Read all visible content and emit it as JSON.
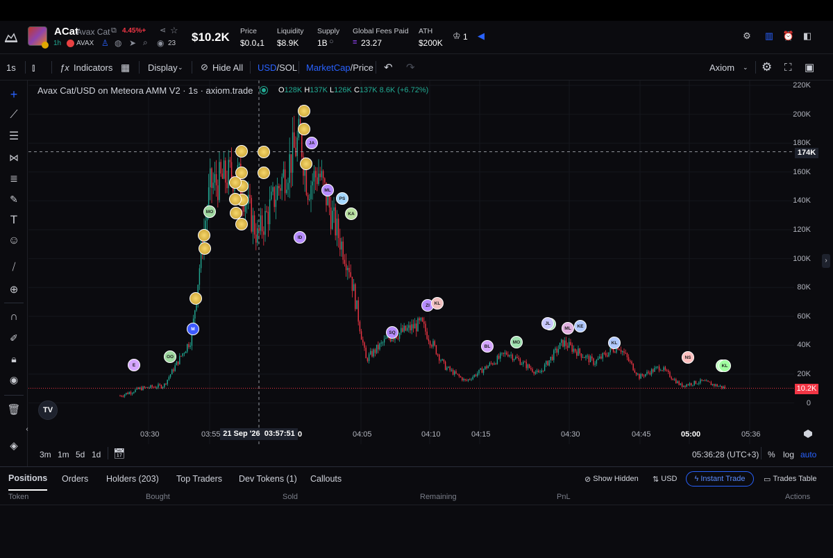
{
  "header": {
    "ticker": "ACat",
    "name": "Avax Cat",
    "change": "4.45%+",
    "age": "1h",
    "chain": "AVAX",
    "views": "23",
    "market_cap": "$10.2K",
    "stats": [
      {
        "label": "Price",
        "value": "$0.0₄1"
      },
      {
        "label": "Liquidity",
        "value": "$8.9K"
      },
      {
        "label": "Supply",
        "value": "1B"
      },
      {
        "label": "Global Fees Paid",
        "value": "23.27"
      },
      {
        "label": "ATH",
        "value": "$200K"
      }
    ],
    "holders_count": "1"
  },
  "toolbar": {
    "interval": "1s",
    "indicators": "Indicators",
    "display": "Display",
    "hide_all": "Hide All",
    "usd": "USD",
    "sol": "/SOL",
    "marketcap": "MarketCap",
    "price": "/Price",
    "provider": "Axiom"
  },
  "chart": {
    "title": "Avax Cat/USD on Meteora AMM V2 · 1s · axiom.trade",
    "ohlc": {
      "o_label": "O",
      "o": "128K",
      "h_label": "H",
      "h": "137K",
      "l_label": "L",
      "l": "126K",
      "c_label": "C",
      "c": "137K",
      "change": "8.6K (+6.72%)"
    },
    "price_labels": [
      "220K",
      "200K",
      "180K",
      "160K",
      "140K",
      "120K",
      "100K",
      "80K",
      "60K",
      "40K",
      "20K",
      "0"
    ],
    "crosshair_price": "174K",
    "current_price": "10.2K",
    "time_labels": [
      "03:30",
      "03:55",
      "04:05",
      "04:10",
      "04:15",
      "04:30",
      "04:45",
      "05:00",
      "05:36"
    ],
    "crosshair_date": "21 Sep '26",
    "crosshair_time": "03:57:51",
    "crosshair_zero": "0",
    "logo": "TV",
    "colors": {
      "up": "#22ab94",
      "down": "#f23645",
      "accent": "#2962ff"
    },
    "bubbles": [
      "M",
      "MO",
      "OO",
      "E",
      "ID",
      "ML",
      "PS",
      "KA",
      "JA",
      "SQ",
      "ZI",
      "KL",
      "BL",
      "MO",
      "FU",
      "JL",
      "ML",
      "KE",
      "KL",
      "KE",
      "NS",
      "KL"
    ]
  },
  "chart_data": {
    "type": "line",
    "title": "Avax Cat/USD on Meteora AMM V2 · 1s · axiom.trade",
    "xlabel": "",
    "ylabel": "",
    "ylim": [
      0,
      220000
    ],
    "x": [
      "03:25",
      "03:30",
      "03:40",
      "03:50",
      "03:52",
      "03:55",
      "03:57",
      "03:59",
      "04:00",
      "04:01",
      "04:02",
      "04:03",
      "04:04",
      "04:05",
      "04:07",
      "04:10",
      "04:12",
      "04:15",
      "04:20",
      "04:25",
      "04:30",
      "04:35",
      "04:40",
      "04:45",
      "04:50",
      "04:55",
      "05:00",
      "05:05"
    ],
    "series": [
      {
        "values": [
          5000,
          10000,
          12000,
          45000,
          110000,
          150000,
          160000,
          115000,
          185000,
          150000,
          160000,
          125000,
          95000,
          30000,
          45000,
          55000,
          25000,
          15000,
          35000,
          20000,
          42000,
          28000,
          40000,
          18000,
          25000,
          12000,
          15000,
          10200
        ]
      }
    ],
    "grid": true
  },
  "bottom_controls": {
    "ranges": [
      "3m",
      "1m",
      "5d",
      "1d"
    ],
    "clock": "05:36:28 (UTC+3)",
    "percent": "%",
    "log": "log",
    "auto": "auto"
  },
  "tabs": {
    "items": [
      "Positions",
      "Orders",
      "Holders (203)",
      "Top Traders",
      "Dev Tokens (1)",
      "Callouts"
    ],
    "show_hidden": "Show Hidden",
    "currency": "USD",
    "instant_trade": "Instant Trade",
    "trades_table": "Trades Table"
  },
  "columns": [
    "Token",
    "Bought",
    "Sold",
    "Remaining",
    "PnL",
    "Actions"
  ]
}
